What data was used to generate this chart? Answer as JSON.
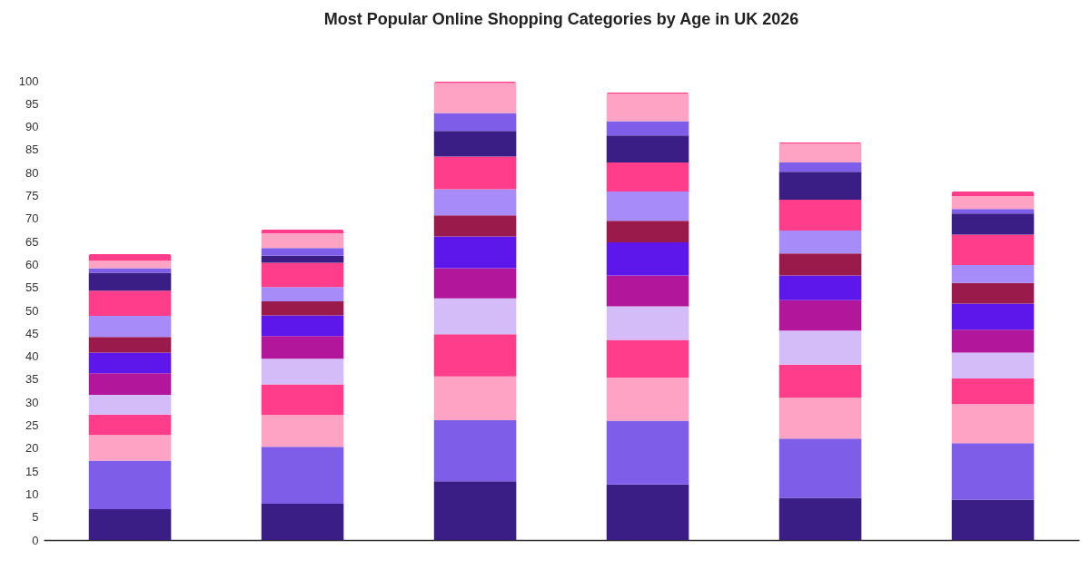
{
  "chart_data": {
    "type": "bar",
    "title": "Most Popular Online Shopping Categories by Age in UK 2026",
    "stacked": true,
    "categories": [
      null,
      null,
      null,
      null,
      null,
      null
    ],
    "series": [
      {
        "color": "#3a1d85",
        "values": [
          6.7,
          7.9,
          12.8,
          12.1,
          9.2,
          8.8
        ]
      },
      {
        "color": "#7e5ee8",
        "values": [
          10.6,
          12.4,
          13.3,
          13.9,
          12.9,
          12.3
        ]
      },
      {
        "color": "#ffa3c5",
        "values": [
          5.6,
          6.9,
          9.5,
          9.4,
          8.9,
          8.5
        ]
      },
      {
        "color": "#ff3d8a",
        "values": [
          4.4,
          6.7,
          9.2,
          8.2,
          7.2,
          5.6
        ]
      },
      {
        "color": "#d4bcf8",
        "values": [
          4.3,
          5.6,
          7.8,
          7.3,
          7.4,
          5.6
        ]
      },
      {
        "color": "#b2179b",
        "values": [
          4.7,
          4.9,
          6.6,
          6.7,
          6.6,
          5.0
        ]
      },
      {
        "color": "#5e17eb",
        "values": [
          4.5,
          4.5,
          6.9,
          7.2,
          5.4,
          5.7
        ]
      },
      {
        "color": "#9b1a4c",
        "values": [
          3.4,
          3.1,
          4.6,
          4.7,
          4.8,
          4.5
        ]
      },
      {
        "color": "#a78bf8",
        "values": [
          4.6,
          3.1,
          5.7,
          6.4,
          5.0,
          3.9
        ]
      },
      {
        "color": "#ff3d8a",
        "values": [
          5.5,
          5.3,
          7.1,
          6.3,
          6.7,
          6.6
        ]
      },
      {
        "color": "#3a1d85",
        "values": [
          3.9,
          1.5,
          5.6,
          5.9,
          6.1,
          4.6
        ]
      },
      {
        "color": "#7e5ee8",
        "values": [
          1.0,
          1.7,
          3.9,
          3.1,
          2.0,
          1.0
        ]
      },
      {
        "color": "#ffa3c5",
        "values": [
          1.6,
          3.2,
          6.5,
          6.0,
          4.1,
          2.8
        ]
      },
      {
        "color": "#ff3d8a",
        "values": [
          1.5,
          0.8,
          0.3,
          0.3,
          0.3,
          1.0
        ]
      }
    ],
    "ylim": [
      0,
      100
    ],
    "yticks": [
      0,
      5,
      10,
      15,
      20,
      25,
      30,
      35,
      40,
      45,
      50,
      55,
      60,
      65,
      70,
      75,
      80,
      85,
      90,
      95,
      100
    ],
    "tick_labels": "y"
  }
}
